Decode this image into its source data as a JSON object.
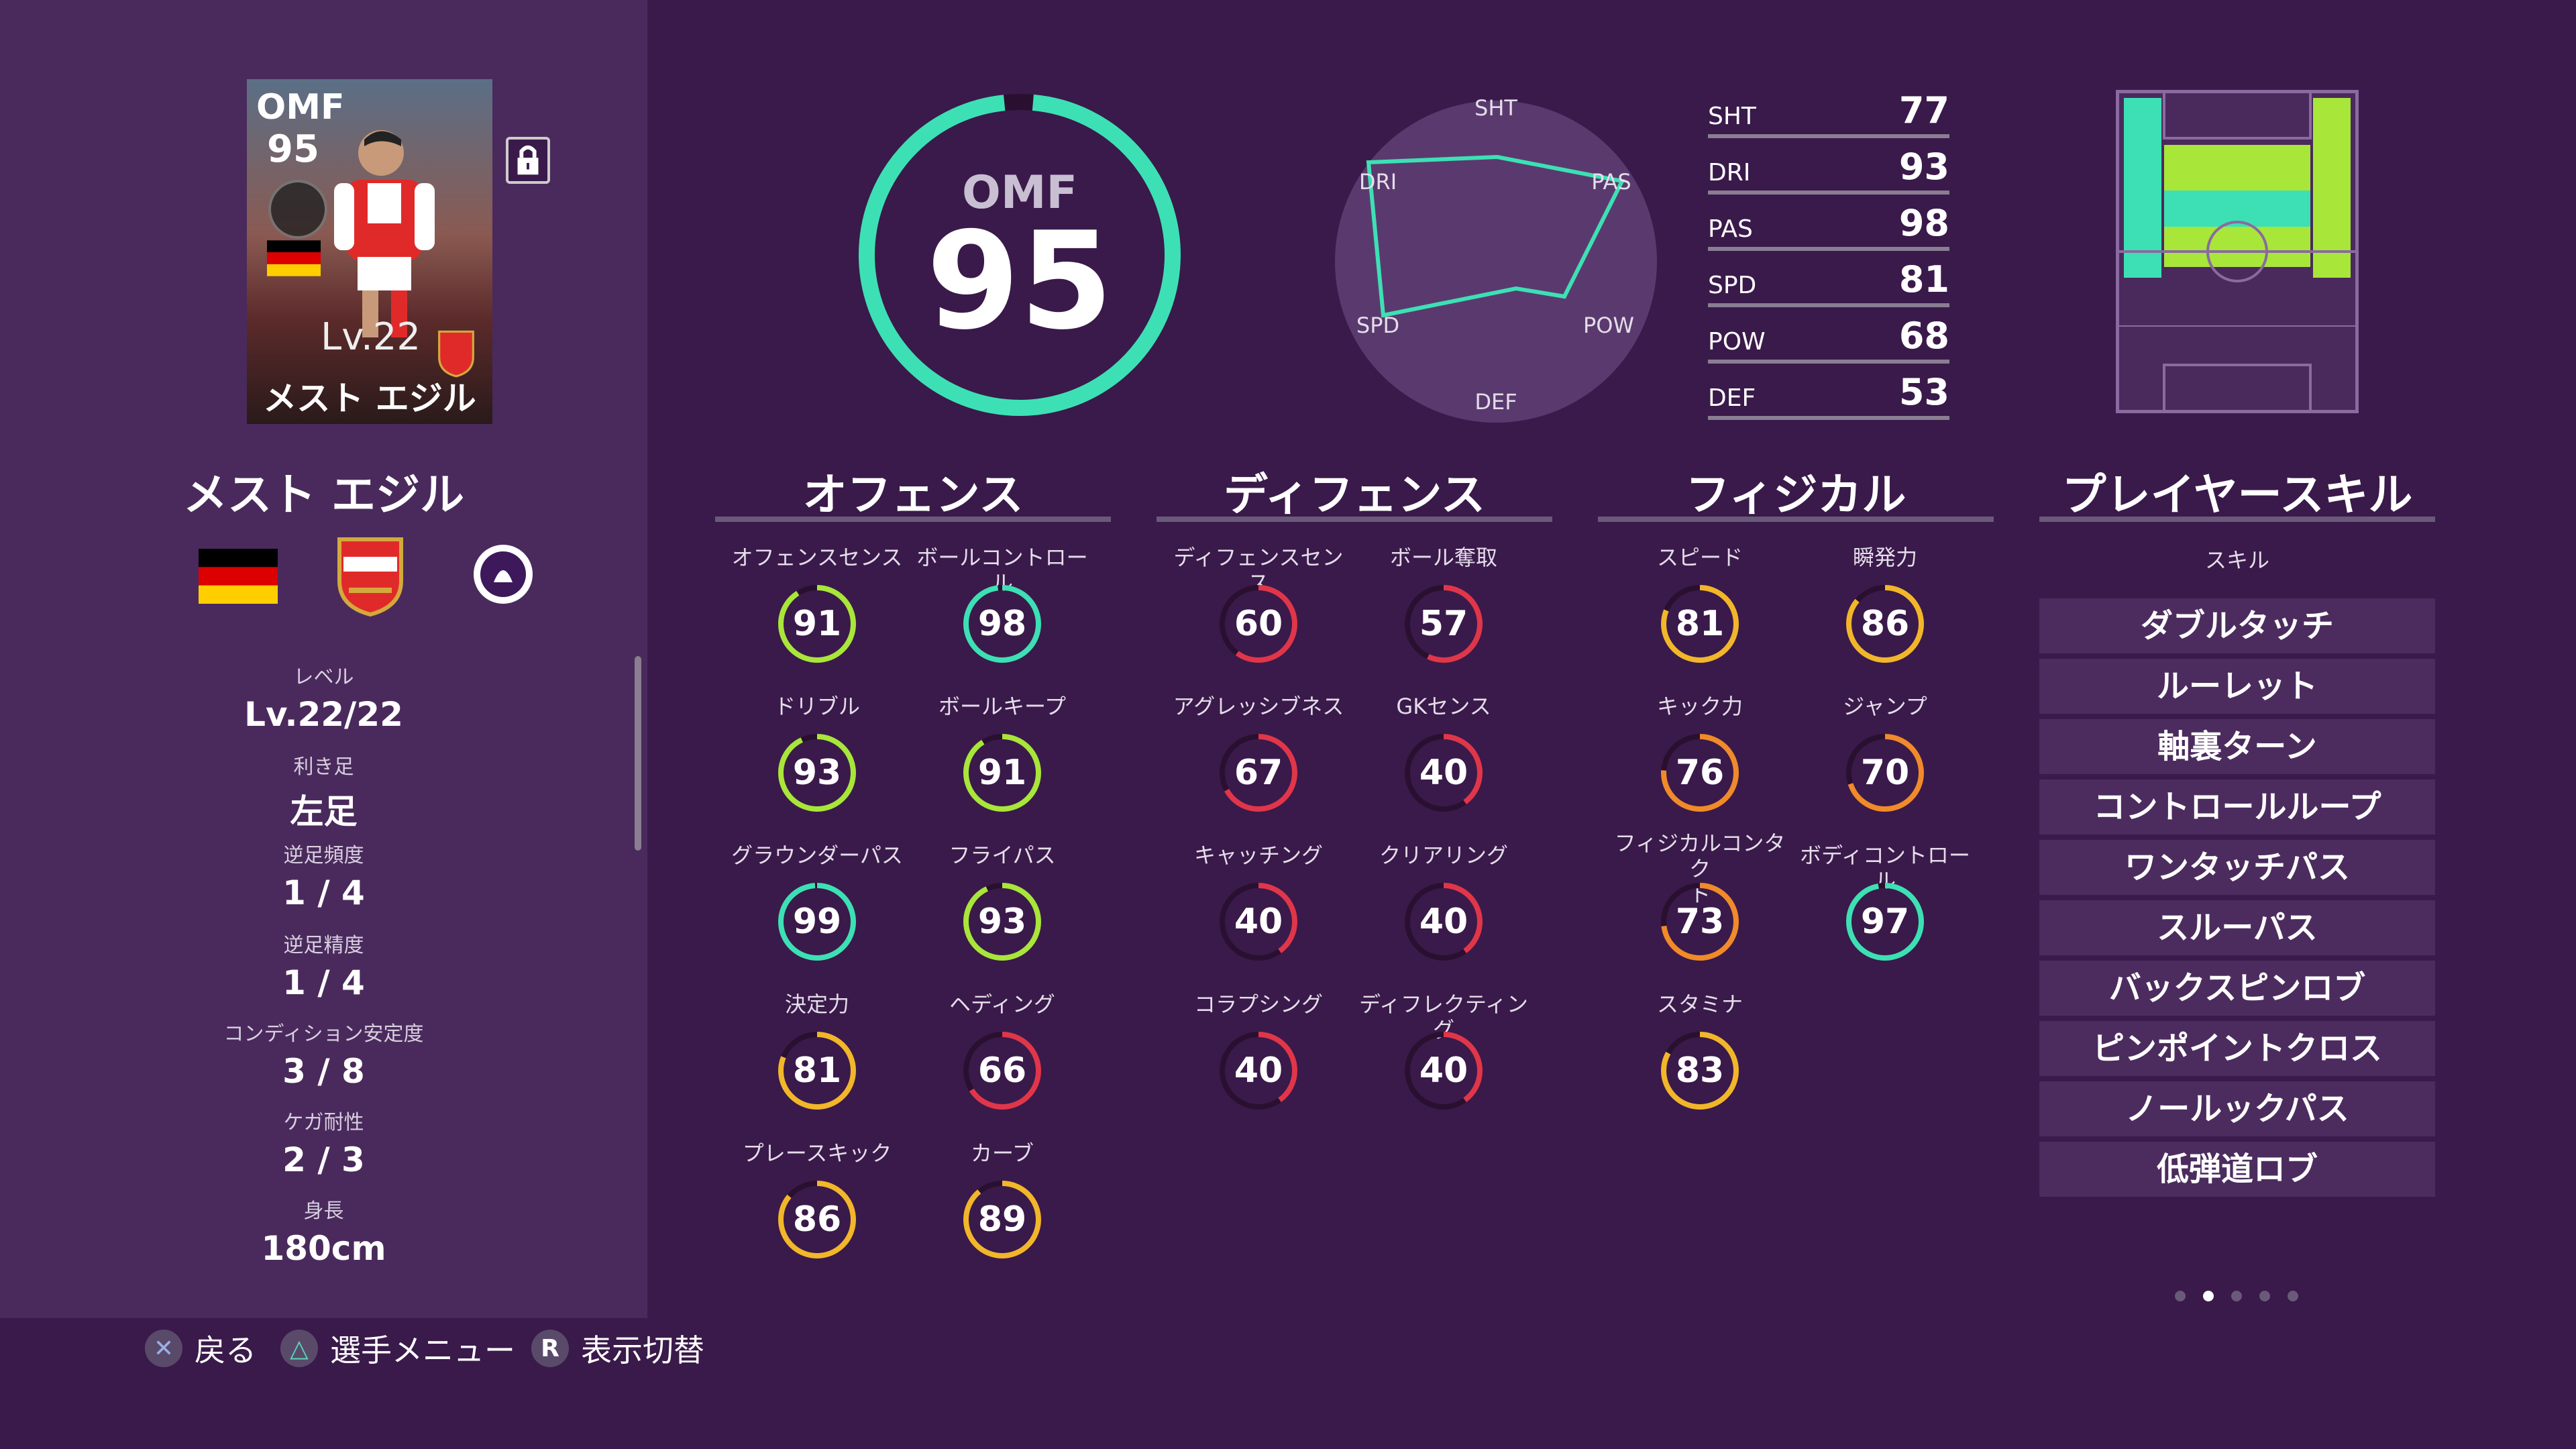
{
  "card": {
    "position": "OMF",
    "overall": "95",
    "level": "Lv.22",
    "name": "メスト エジル"
  },
  "player": {
    "name": "メスト エジル"
  },
  "info": [
    {
      "label": "レベル",
      "value": "Lv.22/22"
    },
    {
      "label": "利き足",
      "value": "左足"
    },
    {
      "label": "逆足頻度",
      "value": "1 / 4"
    },
    {
      "label": "逆足精度",
      "value": "1 / 4"
    },
    {
      "label": "コンディション安定度",
      "value": "3 / 8"
    },
    {
      "label": "ケガ耐性",
      "value": "2 / 3"
    },
    {
      "label": "身長",
      "value": "180cm"
    }
  ],
  "footer": [
    {
      "button": "✕",
      "label": "戻る"
    },
    {
      "button": "△",
      "label": "選手メニュー"
    },
    {
      "button": "R",
      "label": "表示切替"
    }
  ],
  "overall": {
    "position": "OMF",
    "value": "95",
    "ring_fraction": 0.97,
    "color": "#3de0b4"
  },
  "radar": {
    "labels": [
      "SHT",
      "PAS",
      "POW",
      "DEF",
      "SPD",
      "DRI"
    ]
  },
  "stats": [
    {
      "label": "SHT",
      "value": "77"
    },
    {
      "label": "DRI",
      "value": "93"
    },
    {
      "label": "PAS",
      "value": "98"
    },
    {
      "label": "SPD",
      "value": "81"
    },
    {
      "label": "POW",
      "value": "68"
    },
    {
      "label": "DEF",
      "value": "53"
    }
  ],
  "sections": {
    "offense": {
      "title": "オフェンス",
      "attrs": [
        {
          "name": "オフェンスセンス",
          "value": "91"
        },
        {
          "name": "ボールコントロール",
          "value": "98"
        },
        {
          "name": "ドリブル",
          "value": "93"
        },
        {
          "name": "ボールキープ",
          "value": "91"
        },
        {
          "name": "グラウンダーパス",
          "value": "99"
        },
        {
          "name": "フライパス",
          "value": "93"
        },
        {
          "name": "決定力",
          "value": "81"
        },
        {
          "name": "ヘディング",
          "value": "66"
        },
        {
          "name": "プレースキック",
          "value": "86"
        },
        {
          "name": "カーブ",
          "value": "89"
        }
      ]
    },
    "defense": {
      "title": "ディフェンス",
      "attrs": [
        {
          "name": "ディフェンスセンス",
          "value": "60"
        },
        {
          "name": "ボール奪取",
          "value": "57"
        },
        {
          "name": "アグレッシブネス",
          "value": "67"
        },
        {
          "name": "GKセンス",
          "value": "40"
        },
        {
          "name": "キャッチング",
          "value": "40"
        },
        {
          "name": "クリアリング",
          "value": "40"
        },
        {
          "name": "コラプシング",
          "value": "40"
        },
        {
          "name": "ディフレクティング",
          "value": "40"
        }
      ]
    },
    "physical": {
      "title": "フィジカル",
      "attrs": [
        {
          "name": "スピード",
          "value": "81"
        },
        {
          "name": "瞬発力",
          "value": "86"
        },
        {
          "name": "キック力",
          "value": "76"
        },
        {
          "name": "ジャンプ",
          "value": "70"
        },
        {
          "name": "フィジカルコンタク\nト",
          "value": "73"
        },
        {
          "name": "ボディコントロール",
          "value": "97"
        },
        {
          "name": "スタミナ",
          "value": "83"
        }
      ]
    },
    "skills": {
      "title": "プレイヤースキル",
      "subtitle": "スキル",
      "items": [
        "ダブルタッチ",
        "ルーレット",
        "軸裏ターン",
        "コントロールループ",
        "ワンタッチパス",
        "スルーパス",
        "バックスピンロブ",
        "ピンポイントクロス",
        "ノールックパス",
        "低弾道ロブ"
      ]
    }
  },
  "colors": {
    "tier_95": "#3de0b4",
    "tier_90": "#a8e63a",
    "tier_80": "#f2b62a",
    "tier_70": "#f08a2a",
    "tier_low": "#e0364a",
    "track": "#2a1030"
  },
  "pager": {
    "count": 5,
    "active": 1
  }
}
